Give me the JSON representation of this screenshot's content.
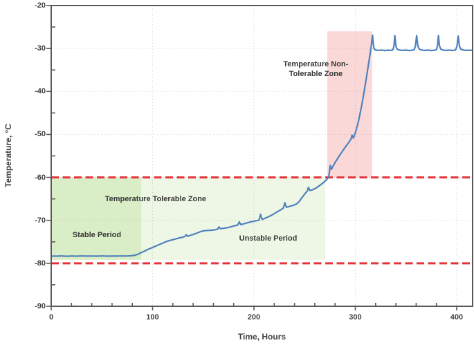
{
  "chart_data": {
    "type": "line",
    "title": "",
    "xlabel": "Time, Hours",
    "ylabel": "Temperature, °C",
    "xlim": [
      0,
      415.7
    ],
    "ylim": [
      -90,
      -20
    ],
    "x_major_ticks": [
      0,
      100,
      200,
      300,
      400
    ],
    "x_minor_step": 20,
    "y_major_ticks": [
      -20,
      -30,
      -40,
      -50,
      -60,
      -70,
      -80,
      -90
    ],
    "y_minor_step": 5,
    "grid": "dotted-major",
    "legend": "none",
    "colors": {
      "series": "#4f81bd",
      "limit_line": "#e5333a",
      "stable_zone": "#d9eec6",
      "tolerable_zone": "#eef7e5",
      "non_tolerable_zone": "#fbd8d8",
      "frame": "#595959",
      "grid": "rgba(130,130,130,0.28)",
      "text": "#3f3f3f"
    },
    "limit_lines": [
      {
        "name": "upper-limit-line",
        "y": -60
      },
      {
        "name": "lower-limit-line",
        "y": -80
      }
    ],
    "zones": [
      {
        "name": "stable-zone",
        "x0": 0,
        "x1": 89,
        "y0": -79.2,
        "y1": -60,
        "color_key": "stable_zone"
      },
      {
        "name": "tolerable-zone",
        "x0": 89,
        "x1": 270.3,
        "y0": -79.2,
        "y1": -60,
        "color_key": "tolerable_zone"
      },
      {
        "name": "non-tolerable-zone",
        "x0": 272.3,
        "x1": 316.5,
        "y0": -60,
        "y1": -26,
        "color_key": "non_tolerable_zone"
      }
    ],
    "annotations": [
      {
        "name": "annotation-stable-period",
        "label": "Stable Period",
        "x": 45,
        "y": -73.4
      },
      {
        "name": "annotation-tolerable-zone",
        "label": "Temperature Tolerable Zone",
        "x": 103,
        "y": -65.1
      },
      {
        "name": "annotation-unstable-period",
        "label": "Unstable Period",
        "x": 214,
        "y": -74.2
      },
      {
        "name": "annotation-non-tolerable-zone",
        "label": "Temperature Non-\nTolerable Zone",
        "x": 261,
        "y": -34.8
      }
    ],
    "series": [
      {
        "name": "temperature-series",
        "points": [
          [
            0,
            -78.3
          ],
          [
            5,
            -78.33
          ],
          [
            10,
            -78.28
          ],
          [
            15,
            -78.35
          ],
          [
            20,
            -78.3
          ],
          [
            25,
            -78.34
          ],
          [
            30,
            -78.28
          ],
          [
            35,
            -78.32
          ],
          [
            40,
            -78.3
          ],
          [
            45,
            -78.34
          ],
          [
            50,
            -78.29
          ],
          [
            55,
            -78.33
          ],
          [
            60,
            -78.3
          ],
          [
            65,
            -78.31
          ],
          [
            70,
            -78.28
          ],
          [
            75,
            -78.3
          ],
          [
            80,
            -78.22
          ],
          [
            83,
            -78.1
          ],
          [
            86,
            -77.85
          ],
          [
            88,
            -77.6
          ],
          [
            90,
            -77.4
          ],
          [
            93,
            -77.05
          ],
          [
            96,
            -76.7
          ],
          [
            100,
            -76.3
          ],
          [
            104,
            -75.9
          ],
          [
            107,
            -75.6
          ],
          [
            110,
            -75.3
          ],
          [
            113,
            -75.0
          ],
          [
            116,
            -74.75
          ],
          [
            120,
            -74.5
          ],
          [
            124,
            -74.25
          ],
          [
            127,
            -74.05
          ],
          [
            130,
            -73.9
          ],
          [
            132,
            -73.75
          ],
          [
            133,
            -73.35
          ],
          [
            134.5,
            -73.7
          ],
          [
            137,
            -73.5
          ],
          [
            140,
            -73.3
          ],
          [
            144,
            -72.95
          ],
          [
            147,
            -72.65
          ],
          [
            150,
            -72.45
          ],
          [
            154,
            -72.35
          ],
          [
            158,
            -72.3
          ],
          [
            161,
            -72.2
          ],
          [
            164,
            -72.05
          ],
          [
            165.5,
            -71.55
          ],
          [
            167,
            -71.95
          ],
          [
            171,
            -71.8
          ],
          [
            175,
            -71.65
          ],
          [
            178,
            -71.45
          ],
          [
            181,
            -71.25
          ],
          [
            184,
            -71.1
          ],
          [
            185.5,
            -70.35
          ],
          [
            187,
            -71.0
          ],
          [
            190,
            -70.8
          ],
          [
            194,
            -70.55
          ],
          [
            198,
            -70.3
          ],
          [
            202,
            -70.1
          ],
          [
            205,
            -69.95
          ],
          [
            206.5,
            -68.6
          ],
          [
            208,
            -69.8
          ],
          [
            211,
            -69.5
          ],
          [
            214,
            -69.2
          ],
          [
            217,
            -68.85
          ],
          [
            220,
            -68.45
          ],
          [
            223,
            -68.0
          ],
          [
            226,
            -67.6
          ],
          [
            229,
            -67.15
          ],
          [
            230.5,
            -65.9
          ],
          [
            232,
            -66.95
          ],
          [
            235,
            -66.75
          ],
          [
            238,
            -66.55
          ],
          [
            241,
            -66.3
          ],
          [
            243,
            -66.0
          ],
          [
            245,
            -65.5
          ],
          [
            247,
            -64.8
          ],
          [
            249,
            -64.2
          ],
          [
            251,
            -63.6
          ],
          [
            252.5,
            -63.2
          ],
          [
            253.8,
            -62.3
          ],
          [
            255,
            -63.05
          ],
          [
            257,
            -62.95
          ],
          [
            259,
            -62.75
          ],
          [
            261,
            -62.5
          ],
          [
            263,
            -62.2
          ],
          [
            265,
            -61.85
          ],
          [
            267,
            -61.5
          ],
          [
            269,
            -61.1
          ],
          [
            271,
            -60.7
          ],
          [
            273,
            -60.15
          ],
          [
            274,
            -59.6
          ],
          [
            275.3,
            -57.2
          ],
          [
            276.5,
            -58.1
          ],
          [
            278,
            -57.4
          ],
          [
            280,
            -56.55
          ],
          [
            282,
            -55.8
          ],
          [
            284,
            -55.05
          ],
          [
            286,
            -54.35
          ],
          [
            288,
            -53.65
          ],
          [
            290,
            -53.0
          ],
          [
            292,
            -52.35
          ],
          [
            294,
            -51.7
          ],
          [
            295.5,
            -51.2
          ],
          [
            296.8,
            -50.15
          ],
          [
            298,
            -50.85
          ],
          [
            299,
            -50.3
          ],
          [
            300.5,
            -49.3
          ],
          [
            302,
            -48.0
          ],
          [
            303.5,
            -46.5
          ],
          [
            305,
            -44.8
          ],
          [
            306.5,
            -43.0
          ],
          [
            308,
            -41.0
          ],
          [
            309.5,
            -38.9
          ],
          [
            311,
            -36.7
          ],
          [
            312.5,
            -34.4
          ],
          [
            314,
            -32.1
          ],
          [
            315.3,
            -30.2
          ],
          [
            316.3,
            -28.2
          ],
          [
            317,
            -26.9
          ],
          [
            317.8,
            -29.2
          ],
          [
            318.6,
            -30.1
          ],
          [
            320,
            -30.35
          ],
          [
            323,
            -30.45
          ],
          [
            326,
            -30.38
          ],
          [
            329,
            -30.48
          ],
          [
            332,
            -30.4
          ],
          [
            335,
            -30.45
          ],
          [
            337,
            -30.32
          ],
          [
            338,
            -29.5
          ],
          [
            339,
            -27.0
          ],
          [
            340,
            -29.4
          ],
          [
            341,
            -30.15
          ],
          [
            344,
            -30.4
          ],
          [
            347,
            -30.45
          ],
          [
            350,
            -30.38
          ],
          [
            353,
            -30.48
          ],
          [
            356,
            -30.4
          ],
          [
            358,
            -30.3
          ],
          [
            359.3,
            -29.4
          ],
          [
            360.5,
            -27.0
          ],
          [
            361.7,
            -29.4
          ],
          [
            363,
            -30.15
          ],
          [
            366,
            -30.4
          ],
          [
            369,
            -30.45
          ],
          [
            372,
            -30.38
          ],
          [
            375,
            -30.48
          ],
          [
            378,
            -30.4
          ],
          [
            380,
            -30.3
          ],
          [
            381,
            -29.4
          ],
          [
            382,
            -27.0
          ],
          [
            383,
            -29.4
          ],
          [
            384.2,
            -30.15
          ],
          [
            387,
            -30.4
          ],
          [
            390,
            -30.45
          ],
          [
            393,
            -30.38
          ],
          [
            396,
            -30.48
          ],
          [
            398.8,
            -30.35
          ],
          [
            400.3,
            -29.5
          ],
          [
            401.5,
            -27.1
          ],
          [
            402.7,
            -29.5
          ],
          [
            404,
            -30.15
          ],
          [
            407,
            -30.4
          ],
          [
            410,
            -30.45
          ],
          [
            413,
            -30.4
          ],
          [
            415.5,
            -30.42
          ]
        ]
      }
    ]
  }
}
